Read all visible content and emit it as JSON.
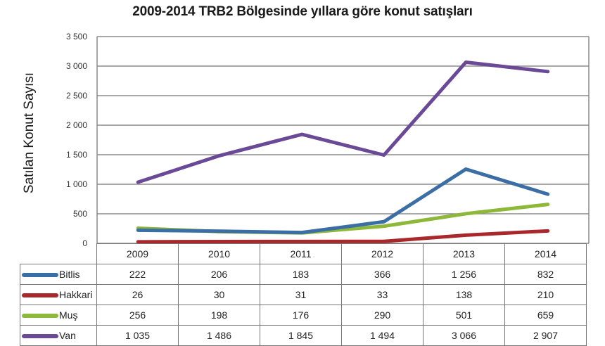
{
  "chart_data": {
    "type": "line",
    "title": "2009-2014 TRB2 Bölgesinde yıllara göre konut satışları",
    "xlabel": "",
    "ylabel": "Satılan Konut Sayısı",
    "categories": [
      "2009",
      "2010",
      "2011",
      "2012",
      "2013",
      "2014"
    ],
    "ylim": [
      0,
      3500
    ],
    "yticks": [
      "0",
      "500",
      "1 000",
      "1 500",
      "2 000",
      "2 500",
      "3 000",
      "3 500"
    ],
    "grid": true,
    "legend_position": "data-table",
    "series": [
      {
        "name": "Bitlis",
        "color": "#3A6EA5",
        "values": [
          222,
          206,
          183,
          366,
          1256,
          832
        ],
        "labels": [
          "222",
          "206",
          "183",
          "366",
          "1 256",
          "832"
        ]
      },
      {
        "name": "Hakkari",
        "color": "#A8282B",
        "values": [
          26,
          30,
          31,
          33,
          138,
          210
        ],
        "labels": [
          "26",
          "30",
          "31",
          "33",
          "138",
          "210"
        ]
      },
      {
        "name": "Muş",
        "color": "#8DB83A",
        "values": [
          256,
          198,
          176,
          290,
          501,
          659
        ],
        "labels": [
          "256",
          "198",
          "176",
          "290",
          "501",
          "659"
        ]
      },
      {
        "name": "Van",
        "color": "#6A4A96",
        "values": [
          1035,
          1486,
          1845,
          1494,
          3066,
          2907
        ],
        "labels": [
          "1 035",
          "1 486",
          "1 845",
          "1 494",
          "3 066",
          "2 907"
        ]
      }
    ]
  }
}
